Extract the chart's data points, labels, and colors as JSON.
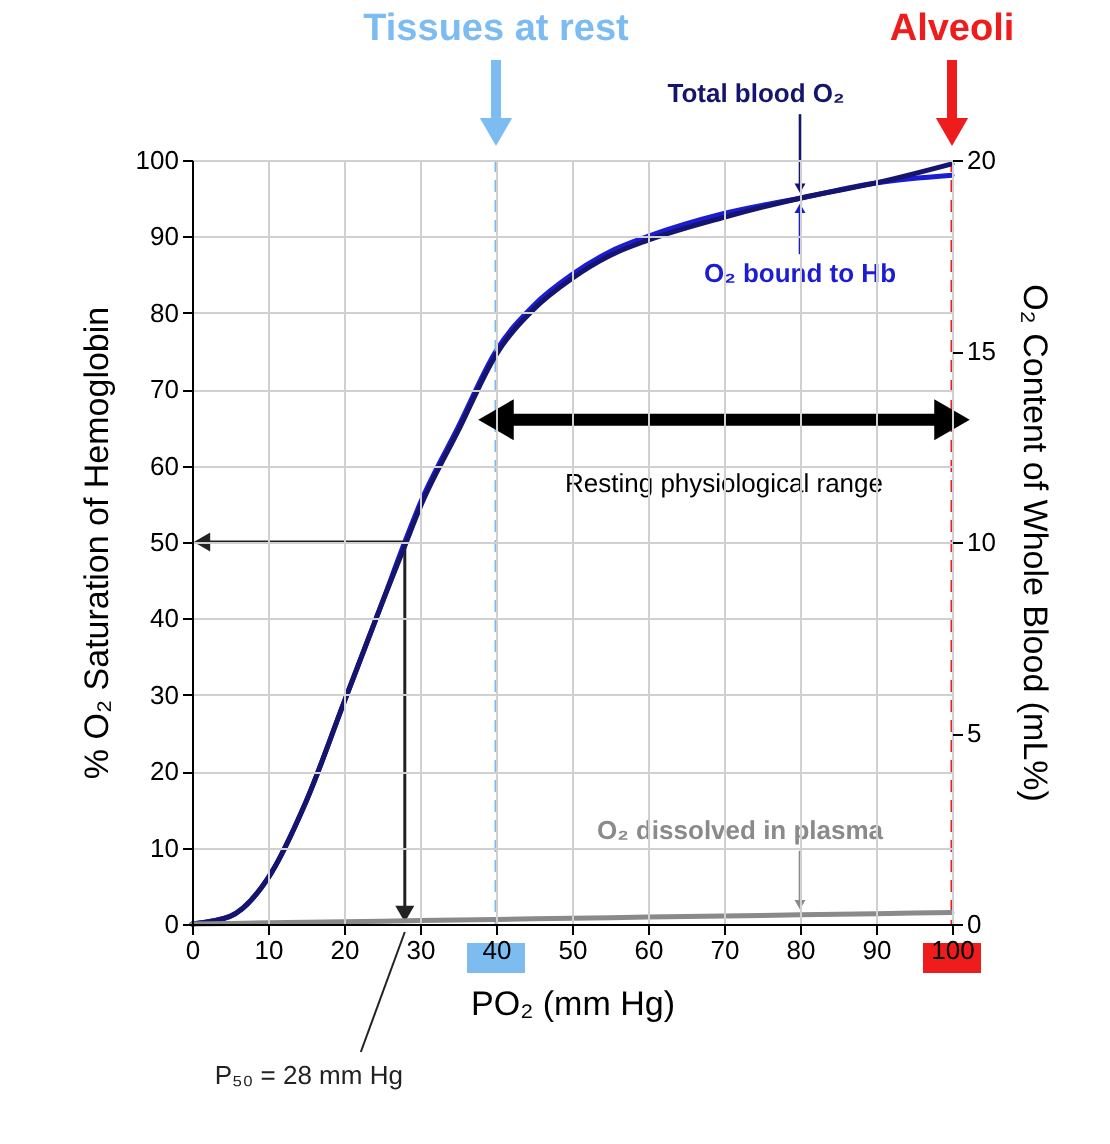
{
  "chart_data": {
    "type": "line",
    "xlabel": "PO₂ (mm Hg)",
    "ylabel": "% O₂ Saturation of Hemoglobin",
    "y2label": "O₂ Content of Whole Blood (mL%)",
    "xlim": [
      0,
      100
    ],
    "xticks": [
      0,
      10,
      20,
      30,
      40,
      50,
      60,
      70,
      80,
      90,
      100
    ],
    "ylim": [
      0,
      100
    ],
    "yticks": [
      0,
      10,
      20,
      30,
      40,
      50,
      60,
      70,
      80,
      90,
      100
    ],
    "y2lim": [
      0,
      20
    ],
    "y2ticks": [
      0,
      5,
      10,
      15,
      20
    ],
    "grid": true,
    "series": [
      {
        "name": "O₂ bound to Hb",
        "color": "#1c1cd2",
        "x": [
          0,
          5,
          10,
          15,
          20,
          25,
          28,
          30,
          35,
          40,
          45,
          50,
          55,
          60,
          70,
          80,
          90,
          100
        ],
        "values": [
          0,
          1,
          6,
          16,
          29,
          42,
          50,
          55,
          65,
          75,
          81,
          85,
          88,
          90,
          93,
          95,
          97,
          98
        ]
      },
      {
        "name": "Total blood O₂",
        "color": "#15156e",
        "axis": "y2",
        "x": [
          0,
          5,
          10,
          15,
          20,
          25,
          28,
          30,
          35,
          40,
          45,
          50,
          55,
          60,
          70,
          80,
          90,
          100
        ],
        "values": [
          0,
          0.2,
          1.2,
          3.2,
          5.8,
          8.4,
          9.9,
          10.9,
          12.9,
          14.9,
          16.1,
          16.9,
          17.5,
          17.9,
          18.5,
          19,
          19.4,
          19.9
        ]
      },
      {
        "name": "O₂ dissolved in plasma",
        "color": "#8a8a8a",
        "axis": "y2",
        "x": [
          0,
          10,
          20,
          30,
          40,
          50,
          60,
          70,
          80,
          90,
          100
        ],
        "values": [
          0,
          0.03,
          0.06,
          0.09,
          0.12,
          0.15,
          0.18,
          0.21,
          0.24,
          0.27,
          0.3
        ]
      }
    ],
    "ref_lines": [
      {
        "axis": "x",
        "value": 40,
        "label": "Tissues at rest",
        "color": "#7dbcf0",
        "line_style": "dashed"
      },
      {
        "axis": "x",
        "value": 100,
        "label": "Alveoli",
        "color": "#ee1c1c",
        "line_style": "dashed"
      }
    ],
    "annotations": [
      "Resting physiological range",
      {
        "text": "P₅₀ = 28 mm Hg",
        "x": 28,
        "y": 0
      }
    ]
  }
}
